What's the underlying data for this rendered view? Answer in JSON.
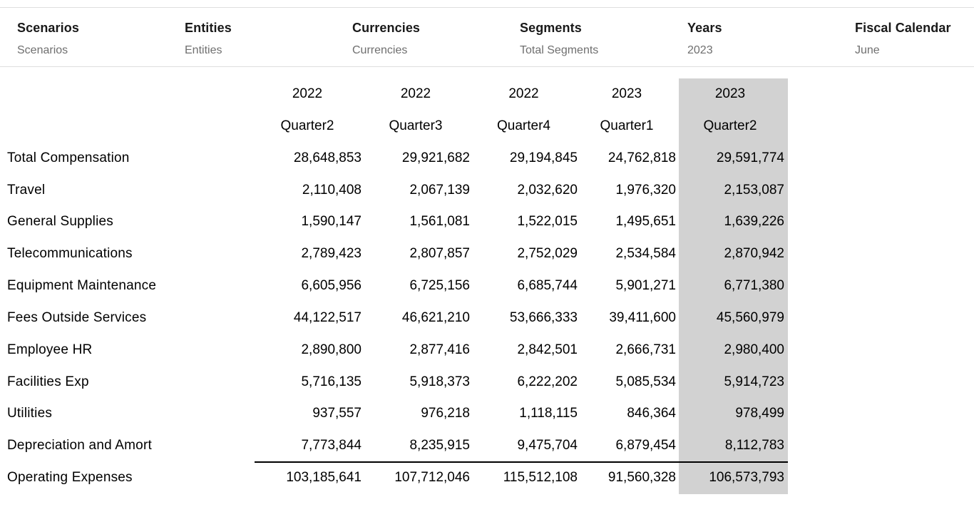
{
  "pov": {
    "items": [
      {
        "label": "Scenarios",
        "value": "Scenarios"
      },
      {
        "label": "Entities",
        "value": "Entities"
      },
      {
        "label": "Currencies",
        "value": "Currencies"
      },
      {
        "label": "Segments",
        "value": "Total Segments"
      },
      {
        "label": "Years",
        "value": "2023"
      },
      {
        "label": "Fiscal Calendar",
        "value": "June"
      }
    ]
  },
  "grid": {
    "column_headers": [
      {
        "year": "2022",
        "quarter": "Quarter2",
        "highlighted": false
      },
      {
        "year": "2022",
        "quarter": "Quarter3",
        "highlighted": false
      },
      {
        "year": "2022",
        "quarter": "Quarter4",
        "highlighted": false
      },
      {
        "year": "2023",
        "quarter": "Quarter1",
        "highlighted": false
      },
      {
        "year": "2023",
        "quarter": "Quarter2",
        "highlighted": true
      }
    ],
    "rows": [
      {
        "label": "Total Compensation",
        "values": [
          "28,648,853",
          "29,921,682",
          "29,194,845",
          "24,762,818",
          "29,591,774"
        ],
        "is_total": false
      },
      {
        "label": "Travel",
        "values": [
          "2,110,408",
          "2,067,139",
          "2,032,620",
          "1,976,320",
          "2,153,087"
        ],
        "is_total": false
      },
      {
        "label": "General Supplies",
        "values": [
          "1,590,147",
          "1,561,081",
          "1,522,015",
          "1,495,651",
          "1,639,226"
        ],
        "is_total": false
      },
      {
        "label": "Telecommunications",
        "values": [
          "2,789,423",
          "2,807,857",
          "2,752,029",
          "2,534,584",
          "2,870,942"
        ],
        "is_total": false
      },
      {
        "label": "Equipment Maintenance",
        "values": [
          "6,605,956",
          "6,725,156",
          "6,685,744",
          "5,901,271",
          "6,771,380"
        ],
        "is_total": false
      },
      {
        "label": "Fees Outside Services",
        "values": [
          "44,122,517",
          "46,621,210",
          "53,666,333",
          "39,411,600",
          "45,560,979"
        ],
        "is_total": false
      },
      {
        "label": "Employee HR",
        "values": [
          "2,890,800",
          "2,877,416",
          "2,842,501",
          "2,666,731",
          "2,980,400"
        ],
        "is_total": false
      },
      {
        "label": "Facilities Exp",
        "values": [
          "5,716,135",
          "5,918,373",
          "6,222,202",
          "5,085,534",
          "5,914,723"
        ],
        "is_total": false
      },
      {
        "label": "Utilities",
        "values": [
          "937,557",
          "976,218",
          "1,118,115",
          "846,364",
          "978,499"
        ],
        "is_total": false
      },
      {
        "label": "Depreciation and Amort",
        "values": [
          "7,773,844",
          "8,235,915",
          "9,475,704",
          "6,879,454",
          "8,112,783"
        ],
        "is_total": false
      },
      {
        "label": "Operating Expenses",
        "values": [
          "103,185,641",
          "107,712,046",
          "115,512,108",
          "91,560,328",
          "106,573,793"
        ],
        "is_total": true
      }
    ]
  },
  "colors": {
    "highlight_column": "#d2d2d2",
    "total_rule": "#000000",
    "text": "#000000",
    "pov_label": "#191919",
    "pov_value": "#6f6f6f",
    "divider": "#dedede"
  }
}
